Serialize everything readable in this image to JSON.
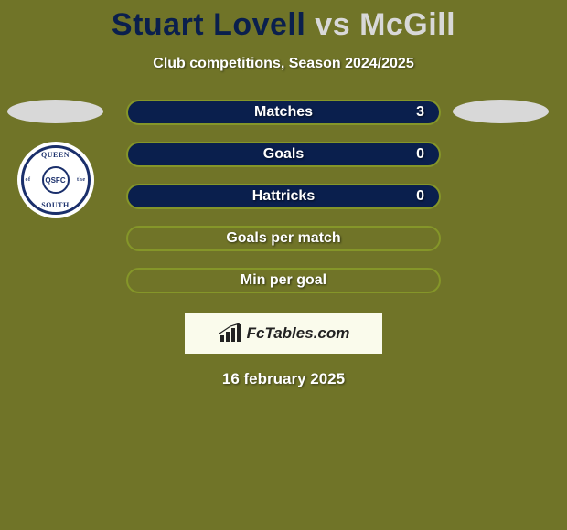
{
  "title": {
    "player1": "Stuart Lovell",
    "separator": "vs",
    "player2": "McGill",
    "player1_color": "#0a1f4d",
    "separator_color": "#d8d8d8",
    "player2_color": "#d8d8d8"
  },
  "subtitle": "Club competitions, Season 2024/2025",
  "left_side": {
    "ellipse_color": "#d8d8d8",
    "badge": {
      "top": "QUEEN",
      "bottom": "SOUTH",
      "left": "of",
      "right": "the",
      "center": "QSFC"
    }
  },
  "right_side": {
    "ellipse1_color": "#d8d8d8",
    "ellipse2_color": "#707428"
  },
  "bars": [
    {
      "label": "Matches",
      "value": "3",
      "border_color": "#859629",
      "fill_color": "#0a1f4d",
      "fill_pct": 100
    },
    {
      "label": "Goals",
      "value": "0",
      "border_color": "#859629",
      "fill_color": "#0a1f4d",
      "fill_pct": 100
    },
    {
      "label": "Hattricks",
      "value": "0",
      "border_color": "#859629",
      "fill_color": "#0a1f4d",
      "fill_pct": 100
    },
    {
      "label": "Goals per match",
      "value": "",
      "border_color": "#859629",
      "fill_color": "#0a1f4d",
      "fill_pct": 0
    },
    {
      "label": "Min per goal",
      "value": "",
      "border_color": "#859629",
      "fill_color": "#0a1f4d",
      "fill_pct": 0
    }
  ],
  "brand": "FcTables.com",
  "date": "16 february 2025",
  "colors": {
    "background": "#707428",
    "text_white": "#ffffff"
  }
}
